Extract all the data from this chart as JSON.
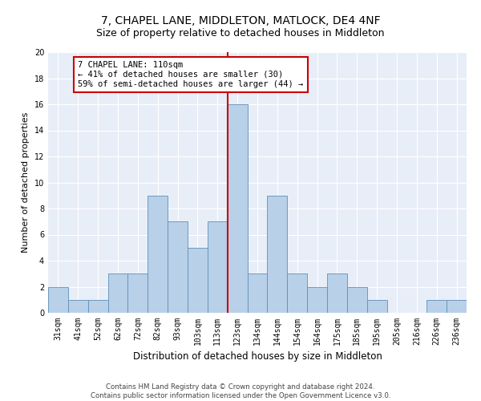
{
  "title": "7, CHAPEL LANE, MIDDLETON, MATLOCK, DE4 4NF",
  "subtitle": "Size of property relative to detached houses in Middleton",
  "xlabel": "Distribution of detached houses by size in Middleton",
  "ylabel": "Number of detached properties",
  "categories": [
    "31sqm",
    "41sqm",
    "52sqm",
    "62sqm",
    "72sqm",
    "82sqm",
    "93sqm",
    "103sqm",
    "113sqm",
    "123sqm",
    "134sqm",
    "144sqm",
    "154sqm",
    "164sqm",
    "175sqm",
    "185sqm",
    "195sqm",
    "205sqm",
    "216sqm",
    "226sqm",
    "236sqm"
  ],
  "values": [
    2,
    1,
    1,
    3,
    3,
    9,
    7,
    5,
    7,
    16,
    3,
    9,
    3,
    2,
    3,
    2,
    1,
    0,
    0,
    1,
    1
  ],
  "bar_color": "#b8d0e8",
  "bar_edge_color": "#6090b8",
  "vline_x": 8.5,
  "vline_color": "#cc0000",
  "annotation_text": "7 CHAPEL LANE: 110sqm\n← 41% of detached houses are smaller (30)\n59% of semi-detached houses are larger (44) →",
  "annotation_box_color": "#ffffff",
  "annotation_box_edge_color": "#cc0000",
  "ylim": [
    0,
    20
  ],
  "yticks": [
    0,
    2,
    4,
    6,
    8,
    10,
    12,
    14,
    16,
    18,
    20
  ],
  "background_color": "#e8eef8",
  "footer_line1": "Contains HM Land Registry data © Crown copyright and database right 2024.",
  "footer_line2": "Contains public sector information licensed under the Open Government Licence v3.0.",
  "title_fontsize": 10,
  "ylabel_fontsize": 8,
  "xlabel_fontsize": 8.5,
  "tick_fontsize": 7,
  "annot_fontsize": 7.5
}
